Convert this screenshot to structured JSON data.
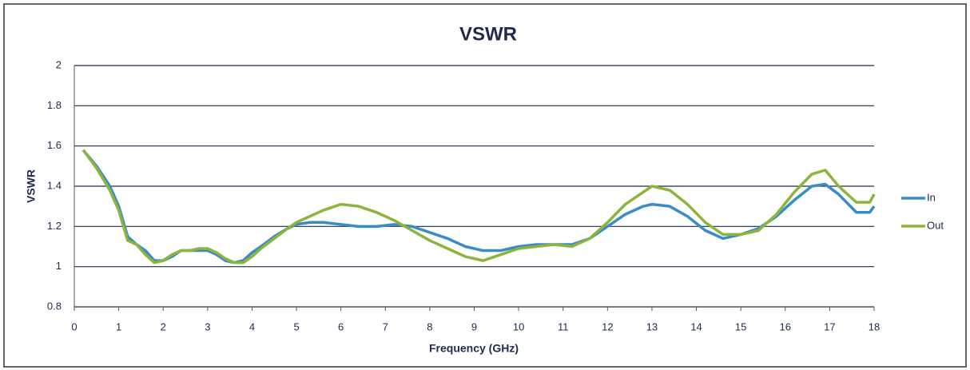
{
  "chart_data": {
    "type": "line",
    "title": "VSWR",
    "x_label": "Frequency (GHz)",
    "y_label": "VSWR",
    "x": [
      0.2,
      0.5,
      0.8,
      1.0,
      1.2,
      1.4,
      1.6,
      1.8,
      2.0,
      2.2,
      2.4,
      2.6,
      2.8,
      3.0,
      3.2,
      3.4,
      3.6,
      3.8,
      4.0,
      4.2,
      4.5,
      4.8,
      5.0,
      5.3,
      5.6,
      6.0,
      6.4,
      6.8,
      7.2,
      7.6,
      8.0,
      8.4,
      8.8,
      9.2,
      9.6,
      10.0,
      10.4,
      10.8,
      11.2,
      11.6,
      12.0,
      12.4,
      12.8,
      13.0,
      13.4,
      13.8,
      14.2,
      14.6,
      15.0,
      15.4,
      15.8,
      16.2,
      16.6,
      16.9,
      17.2,
      17.6,
      17.9,
      18
    ],
    "series": [
      {
        "name": "In",
        "color": "#3a8cc6",
        "values": [
          1.58,
          1.5,
          1.4,
          1.3,
          1.15,
          1.11,
          1.08,
          1.03,
          1.03,
          1.05,
          1.08,
          1.08,
          1.08,
          1.08,
          1.06,
          1.03,
          1.02,
          1.03,
          1.07,
          1.1,
          1.15,
          1.19,
          1.21,
          1.22,
          1.22,
          1.21,
          1.2,
          1.2,
          1.21,
          1.2,
          1.17,
          1.14,
          1.1,
          1.08,
          1.08,
          1.1,
          1.11,
          1.11,
          1.11,
          1.14,
          1.2,
          1.26,
          1.3,
          1.31,
          1.3,
          1.25,
          1.18,
          1.14,
          1.16,
          1.19,
          1.25,
          1.33,
          1.4,
          1.41,
          1.36,
          1.27,
          1.27,
          1.3
        ]
      },
      {
        "name": "Out",
        "color": "#8db43c",
        "values": [
          1.58,
          1.49,
          1.38,
          1.28,
          1.13,
          1.11,
          1.06,
          1.02,
          1.03,
          1.06,
          1.08,
          1.08,
          1.09,
          1.09,
          1.07,
          1.04,
          1.02,
          1.02,
          1.05,
          1.09,
          1.14,
          1.19,
          1.22,
          1.25,
          1.28,
          1.31,
          1.3,
          1.27,
          1.23,
          1.18,
          1.13,
          1.09,
          1.05,
          1.03,
          1.06,
          1.09,
          1.1,
          1.11,
          1.1,
          1.14,
          1.22,
          1.31,
          1.37,
          1.4,
          1.38,
          1.31,
          1.22,
          1.16,
          1.16,
          1.18,
          1.26,
          1.37,
          1.46,
          1.48,
          1.4,
          1.32,
          1.32,
          1.36
        ]
      }
    ],
    "xlim": [
      0,
      18
    ],
    "xticks": [
      0,
      1,
      2,
      3,
      4,
      5,
      6,
      7,
      8,
      9,
      10,
      11,
      12,
      13,
      14,
      15,
      16,
      17,
      18
    ],
    "ylim": [
      0.8,
      2
    ],
    "yticks": [
      0.8,
      1,
      1.2,
      1.4,
      1.6,
      1.8,
      2
    ],
    "grid": true,
    "legend": "right"
  }
}
